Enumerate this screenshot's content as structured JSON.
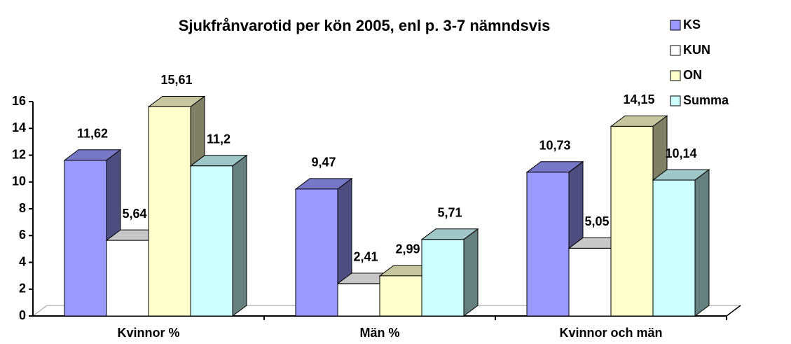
{
  "chart_data": {
    "type": "bar3d",
    "title": "Sjukfrånvarotid per kön 2005, enl p. 3-7 nämndsvis",
    "categories": [
      "Kvinnor %",
      "Män %",
      "Kvinnor och män"
    ],
    "series": [
      {
        "name": "KS",
        "color": "#9999ff",
        "values": [
          11.62,
          9.47,
          10.73
        ],
        "value_labels": [
          "11,62",
          "9,47",
          "10,73"
        ]
      },
      {
        "name": "KUN",
        "color": "#ffffff",
        "values": [
          5.64,
          2.41,
          5.05
        ],
        "value_labels": [
          "5,64",
          "2,41",
          "5,05"
        ]
      },
      {
        "name": "ON",
        "color": "#ffffcc",
        "values": [
          15.61,
          2.99,
          14.15
        ],
        "value_labels": [
          "15,61",
          "2,99",
          "14,15"
        ]
      },
      {
        "name": "Summa",
        "color": "#ccffff",
        "values": [
          11.2,
          5.71,
          10.14
        ],
        "value_labels": [
          "11,2",
          "5,71",
          "10,14"
        ]
      }
    ],
    "ylim": [
      0,
      16
    ],
    "yticks": [
      0,
      2,
      4,
      6,
      8,
      10,
      12,
      14,
      16
    ],
    "legend": "top-right"
  }
}
